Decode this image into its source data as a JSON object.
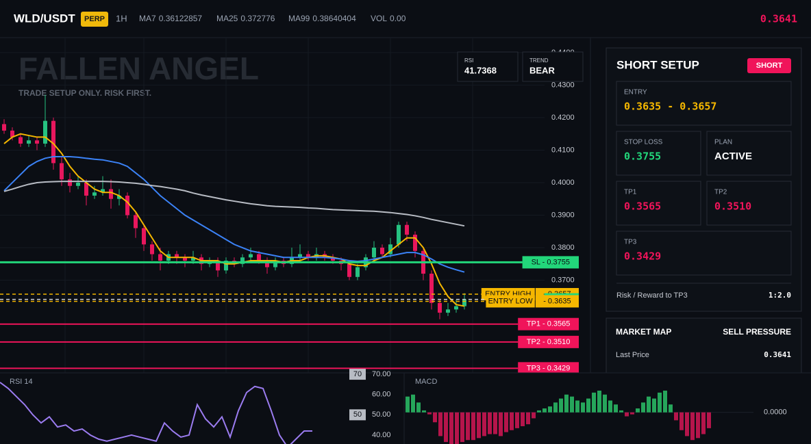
{
  "header": {
    "symbol": "WLD/USDT",
    "badge": "PERP",
    "interval": "1H",
    "volume": {
      "name": "VOL",
      "value": "0.00"
    },
    "last_price": "0.3641"
  },
  "chart_data": [
    {
      "type": "candlestick",
      "title": "FALLEN ANGEL",
      "subtitle": "TRADE SETUP ONLY. RISK FIRST.",
      "up_color": "#26c281",
      "down_color": "#e8175d",
      "open": [
        0.418,
        0.416,
        0.414,
        0.412,
        0.413,
        0.412,
        0.419,
        0.406,
        0.401,
        0.399,
        0.4,
        0.396,
        0.397,
        0.398,
        0.395,
        0.396,
        0.39,
        0.386,
        0.381,
        0.378,
        0.376,
        0.378,
        0.377,
        0.376,
        0.377,
        0.375,
        0.376,
        0.373,
        0.376,
        0.375,
        0.377,
        0.378,
        0.376,
        0.374,
        0.376,
        0.375,
        0.377,
        0.378,
        0.377,
        0.378,
        0.377,
        0.376,
        0.375,
        0.371,
        0.374,
        0.377,
        0.38,
        0.378,
        0.381,
        0.387,
        0.384,
        0.379,
        0.372,
        0.363,
        0.36,
        0.361,
        0.362
      ],
      "high": [
        0.4195,
        0.417,
        0.415,
        0.4145,
        0.414,
        0.427,
        0.42,
        0.408,
        0.403,
        0.402,
        0.401,
        0.399,
        0.402,
        0.401,
        0.398,
        0.397,
        0.391,
        0.387,
        0.382,
        0.38,
        0.379,
        0.379,
        0.378,
        0.379,
        0.378,
        0.377,
        0.377,
        0.377,
        0.377,
        0.378,
        0.38,
        0.379,
        0.377,
        0.377,
        0.377,
        0.38,
        0.381,
        0.379,
        0.38,
        0.379,
        0.378,
        0.377,
        0.376,
        0.375,
        0.378,
        0.382,
        0.381,
        0.383,
        0.388,
        0.388,
        0.385,
        0.38,
        0.373,
        0.364,
        0.363,
        0.364,
        0.366
      ],
      "low": [
        0.415,
        0.413,
        0.411,
        0.411,
        0.41,
        0.411,
        0.404,
        0.399,
        0.397,
        0.398,
        0.393,
        0.395,
        0.396,
        0.392,
        0.393,
        0.389,
        0.383,
        0.379,
        0.376,
        0.373,
        0.375,
        0.375,
        0.374,
        0.375,
        0.373,
        0.374,
        0.371,
        0.372,
        0.374,
        0.374,
        0.376,
        0.375,
        0.372,
        0.373,
        0.374,
        0.374,
        0.376,
        0.376,
        0.376,
        0.376,
        0.375,
        0.373,
        0.37,
        0.37,
        0.373,
        0.376,
        0.377,
        0.377,
        0.38,
        0.382,
        0.377,
        0.37,
        0.361,
        0.358,
        0.359,
        0.36,
        0.361
      ],
      "close": [
        0.416,
        0.414,
        0.412,
        0.413,
        0.412,
        0.419,
        0.406,
        0.401,
        0.399,
        0.4,
        0.396,
        0.397,
        0.398,
        0.395,
        0.396,
        0.39,
        0.386,
        0.381,
        0.378,
        0.376,
        0.378,
        0.377,
        0.376,
        0.377,
        0.375,
        0.376,
        0.373,
        0.376,
        0.375,
        0.377,
        0.378,
        0.376,
        0.374,
        0.376,
        0.375,
        0.377,
        0.378,
        0.377,
        0.378,
        0.377,
        0.376,
        0.375,
        0.371,
        0.374,
        0.377,
        0.38,
        0.378,
        0.381,
        0.387,
        0.384,
        0.379,
        0.372,
        0.363,
        0.36,
        0.361,
        0.362,
        0.3641
      ],
      "series": [
        {
          "name": "MA7",
          "label": "0.36122857",
          "color": "#f5b700",
          "values": [
            0.412,
            0.414,
            0.415,
            0.4145,
            0.414,
            0.414,
            0.412,
            0.409,
            0.405,
            0.402,
            0.4,
            0.398,
            0.397,
            0.397,
            0.396,
            0.394,
            0.391,
            0.387,
            0.383,
            0.379,
            0.377,
            0.377,
            0.377,
            0.377,
            0.376,
            0.376,
            0.376,
            0.375,
            0.375,
            0.3755,
            0.376,
            0.376,
            0.376,
            0.376,
            0.3755,
            0.376,
            0.376,
            0.377,
            0.3775,
            0.3775,
            0.377,
            0.3765,
            0.375,
            0.3745,
            0.3745,
            0.376,
            0.377,
            0.379,
            0.381,
            0.383,
            0.383,
            0.38,
            0.375,
            0.369,
            0.365,
            0.3625,
            0.362
          ]
        },
        {
          "name": "MA25",
          "label": "0.372776",
          "color": "#3b82f6",
          "values": [
            0.3975,
            0.4,
            0.4025,
            0.405,
            0.4065,
            0.4075,
            0.408,
            0.408,
            0.408,
            0.4078,
            0.4075,
            0.4072,
            0.407,
            0.4065,
            0.406,
            0.405,
            0.403,
            0.401,
            0.3985,
            0.396,
            0.394,
            0.392,
            0.39,
            0.3885,
            0.387,
            0.3855,
            0.384,
            0.3825,
            0.381,
            0.38,
            0.379,
            0.3785,
            0.378,
            0.3775,
            0.377,
            0.377,
            0.377,
            0.377,
            0.377,
            0.377,
            0.3768,
            0.3765,
            0.376,
            0.3758,
            0.376,
            0.3765,
            0.377,
            0.3775,
            0.378,
            0.3785,
            0.3785,
            0.3778,
            0.3765,
            0.375,
            0.374,
            0.3732,
            0.3725
          ]
        },
        {
          "name": "MA99",
          "label": "0.38640404",
          "color": "#b8bcc4",
          "values": [
            0.3973,
            0.398,
            0.3988,
            0.3995,
            0.4,
            0.4002,
            0.4003,
            0.4004,
            0.4004,
            0.4004,
            0.4004,
            0.4004,
            0.4004,
            0.4003,
            0.4002,
            0.4,
            0.3998,
            0.3995,
            0.3991,
            0.3988,
            0.3984,
            0.398,
            0.3975,
            0.3968,
            0.3962,
            0.3957,
            0.3952,
            0.3947,
            0.3943,
            0.3939,
            0.3935,
            0.3932,
            0.3929,
            0.3927,
            0.3926,
            0.3925,
            0.3924,
            0.3922,
            0.3921,
            0.3919,
            0.3917,
            0.3916,
            0.3915,
            0.3914,
            0.3913,
            0.3912,
            0.391,
            0.3908,
            0.3905,
            0.3902,
            0.3898,
            0.3893,
            0.3887,
            0.3882,
            0.3877,
            0.3872,
            0.3867
          ]
        }
      ],
      "ylim": [
        0.3415,
        0.4446
      ],
      "yticks": [
        {
          "value": 0.44,
          "label": "0.4400"
        },
        {
          "value": 0.43,
          "label": "0.4300"
        },
        {
          "value": 0.42,
          "label": "0.4200"
        },
        {
          "value": 0.41,
          "label": "0.4100"
        },
        {
          "value": 0.4,
          "label": "0.4000"
        },
        {
          "value": 0.39,
          "label": "0.3900"
        },
        {
          "value": 0.38,
          "label": "0.3800"
        },
        {
          "value": 0.37,
          "label": "0.3700"
        }
      ],
      "grid": true,
      "levels": [
        {
          "label": "SL - 0.3755",
          "value": 0.3755,
          "color": "#22d67a",
          "text_color": "#0b0e14",
          "style": "solid"
        },
        {
          "tag": "ENTRY HIGH",
          "label": "- 0.3657",
          "value": 0.3657,
          "color": "#f5b700",
          "text_color": "#0b0e14",
          "style": "dashed"
        },
        {
          "label": "0.3641",
          "value": 0.3641,
          "color": "#22d67a",
          "line_color": "#cfd3da",
          "text_color": "#0b0e14",
          "style": "dashed"
        },
        {
          "tag": "ENTRY LOW",
          "label": "- 0.3635",
          "value": 0.3635,
          "color": "#f5b700",
          "text_color": "#0b0e14",
          "style": "dashed"
        },
        {
          "label": "TP1 - 0.3565",
          "value": 0.3565,
          "color": "#f0145a",
          "text_color": "#ffffff",
          "style": "solid"
        },
        {
          "label": "TP2 - 0.3510",
          "value": 0.351,
          "color": "#f0145a",
          "text_color": "#ffffff",
          "style": "solid"
        },
        {
          "label": "TP3 - 0.3429",
          "value": 0.3429,
          "color": "#f0145a",
          "text_color": "#ffffff",
          "style": "solid"
        }
      ],
      "stats": [
        {
          "label": "RSI",
          "value": "41.7368"
        },
        {
          "label": "TREND",
          "value": "BEAR"
        }
      ]
    },
    {
      "type": "line",
      "title": "RSI 14",
      "color": "#9b7cf0",
      "values": [
        66,
        63,
        59,
        55,
        50,
        46,
        49,
        44,
        45,
        42,
        43,
        40,
        38,
        37,
        38,
        39,
        40,
        39,
        38,
        37,
        46,
        42,
        39,
        40,
        55,
        48,
        44,
        49,
        39,
        52,
        61,
        64,
        63,
        52,
        40,
        34,
        38,
        42,
        42
      ],
      "ylim": [
        35.6,
        70.7
      ],
      "yticks": [
        {
          "value": 70,
          "label": "70.00"
        },
        {
          "value": 60,
          "label": "60.00"
        },
        {
          "value": 50,
          "label": "50.00"
        },
        {
          "value": 40,
          "label": "40.00"
        }
      ],
      "levels": [
        70,
        50
      ]
    },
    {
      "type": "bar",
      "title": "MACD",
      "up_color": "#26a65b",
      "down_color": "#b5154b",
      "values": [
        0.0008,
        0.0009,
        0.0005,
        0.0001,
        -0.0001,
        -0.0005,
        -0.0012,
        -0.0015,
        -0.0016,
        -0.0016,
        -0.0015,
        -0.0014,
        -0.0014,
        -0.0013,
        -0.0012,
        -0.0011,
        -0.0011,
        -0.0012,
        -0.001,
        -0.0009,
        -0.0008,
        -0.0007,
        -0.0006,
        -0.0003,
        0.0001,
        0.0002,
        0.0003,
        0.0005,
        0.0007,
        0.0009,
        0.0008,
        0.0006,
        0.0005,
        0.0007,
        0.001,
        0.0011,
        0.0009,
        0.0006,
        0.0004,
        0.0001,
        -0.0002,
        -0.0001,
        0.0002,
        0.0005,
        0.0008,
        0.0007,
        0.001,
        0.0011,
        0.0004,
        -0.0004,
        -0.0009,
        -0.0012,
        -0.0014,
        -0.0013,
        -0.0011,
        -0.0008
      ],
      "ylim": [
        -0.0016,
        0.002
      ],
      "yticks": [
        {
          "value": 0,
          "label": "0.0000"
        }
      ]
    }
  ],
  "setup": {
    "title": "SHORT SETUP",
    "badge": "SHORT",
    "entry": {
      "label": "ENTRY",
      "value": "0.3635 - 0.3657"
    },
    "stop_loss": {
      "label": "STOP LOSS",
      "value": "0.3755"
    },
    "plan": {
      "label": "PLAN",
      "value": "ACTIVE"
    },
    "tp1": {
      "label": "TP1",
      "value": "0.3565"
    },
    "tp2": {
      "label": "TP2",
      "value": "0.3510"
    },
    "tp3": {
      "label": "TP3",
      "value": "0.3429"
    },
    "risk_reward": {
      "label": "Risk / Reward to TP3",
      "value": "1:2.0"
    }
  },
  "market_map": {
    "title": "MARKET MAP",
    "status": "SELL PRESSURE",
    "rows": [
      [
        "Last Price",
        "0.3641"
      ]
    ]
  }
}
